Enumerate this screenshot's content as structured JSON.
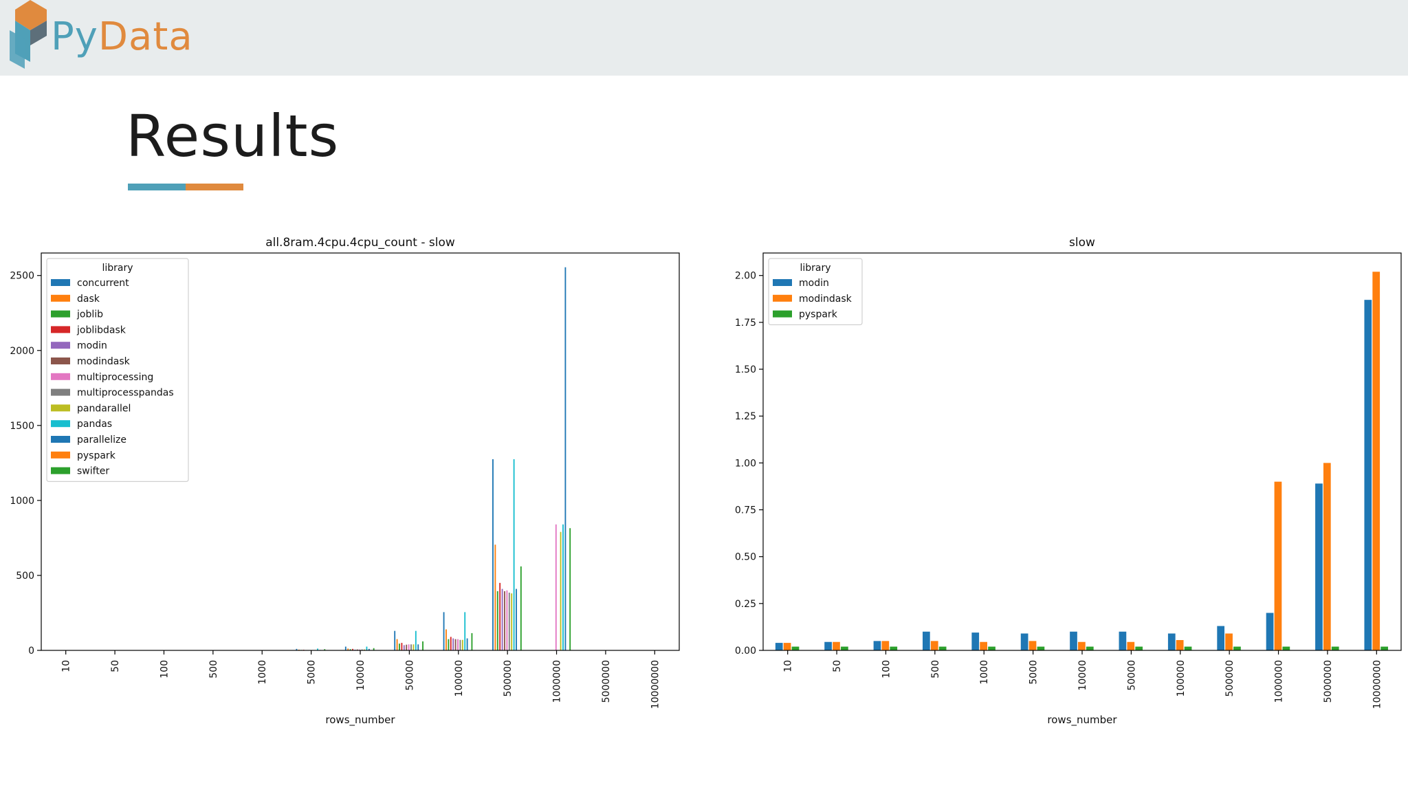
{
  "header": {
    "logo_py": "Py",
    "logo_data": "Data"
  },
  "slide": {
    "title": "Results"
  },
  "colors": {
    "header_bg": "#e8eced",
    "brand_blue": "#4fa0b8",
    "brand_orange": "#e08a3e"
  },
  "chart_data": [
    {
      "type": "bar",
      "title": "all.8ram.4cpu.4cpu_count - slow",
      "xlabel": "rows_number",
      "ylabel": "",
      "ylim": [
        0,
        2650
      ],
      "yticks": [
        "0",
        "500",
        "1000",
        "1500",
        "2000",
        "2500"
      ],
      "categories": [
        "10",
        "50",
        "100",
        "500",
        "1000",
        "5000",
        "10000",
        "50000",
        "100000",
        "500000",
        "1000000",
        "5000000",
        "10000000"
      ],
      "legend_title": "library",
      "legend_position": "upper-left",
      "series": [
        {
          "name": "concurrent",
          "color": "#1f77b4",
          "values": [
            0,
            0,
            0,
            0,
            0,
            10,
            25,
            130,
            255,
            1275,
            null,
            null,
            null
          ]
        },
        {
          "name": "dask",
          "color": "#ff7f0e",
          "values": [
            0,
            0,
            0,
            0,
            0,
            5,
            12,
            75,
            140,
            705,
            null,
            null,
            null
          ]
        },
        {
          "name": "joblib",
          "color": "#2ca02c",
          "values": [
            0,
            0,
            0,
            0,
            0,
            3,
            8,
            45,
            75,
            395,
            null,
            null,
            null
          ]
        },
        {
          "name": "joblibdask",
          "color": "#d62728",
          "values": [
            0,
            0,
            0,
            0,
            0,
            4,
            10,
            50,
            90,
            450,
            null,
            null,
            null
          ]
        },
        {
          "name": "modin",
          "color": "#9467bd",
          "values": [
            0,
            0,
            0,
            0,
            0,
            2,
            5,
            35,
            80,
            410,
            null,
            null,
            null
          ]
        },
        {
          "name": "modindask",
          "color": "#8c564b",
          "values": [
            0,
            0,
            0,
            0,
            0,
            2,
            6,
            38,
            75,
            395,
            null,
            null,
            null
          ]
        },
        {
          "name": "multiprocessing",
          "color": "#e377c2",
          "values": [
            0,
            0,
            0,
            0,
            0,
            2,
            6,
            40,
            75,
            400,
            840,
            null,
            null
          ]
        },
        {
          "name": "multiprocesspandas",
          "color": "#7f7f7f",
          "values": [
            0,
            0,
            0,
            0,
            0,
            2,
            6,
            40,
            70,
            385,
            null,
            null,
            null
          ]
        },
        {
          "name": "pandarallel",
          "color": "#bcbd22",
          "values": [
            0,
            0,
            0,
            0,
            0,
            2,
            6,
            40,
            70,
            380,
            790,
            null,
            null
          ]
        },
        {
          "name": "pandas",
          "color": "#17becf",
          "values": [
            0,
            0,
            0,
            0,
            0,
            12,
            25,
            130,
            255,
            1275,
            840,
            null,
            null
          ]
        },
        {
          "name": "parallelize",
          "color": "#1f77b4",
          "values": [
            0,
            0,
            0,
            0,
            0,
            3,
            10,
            40,
            80,
            410,
            2555,
            null,
            null
          ]
        },
        {
          "name": "pyspark",
          "color": "#ff7f0e",
          "values": [
            null,
            null,
            null,
            null,
            null,
            null,
            null,
            null,
            null,
            null,
            null,
            null,
            null
          ]
        },
        {
          "name": "swifter",
          "color": "#2ca02c",
          "values": [
            0,
            0,
            0,
            0,
            0,
            8,
            15,
            60,
            115,
            560,
            815,
            null,
            null
          ]
        }
      ]
    },
    {
      "type": "bar",
      "title": "slow",
      "xlabel": "rows_number",
      "ylabel": "",
      "ylim": [
        0,
        2.12
      ],
      "yticks": [
        "0.00",
        "0.25",
        "0.50",
        "0.75",
        "1.00",
        "1.25",
        "1.50",
        "1.75",
        "2.00"
      ],
      "categories": [
        "10",
        "50",
        "100",
        "500",
        "1000",
        "5000",
        "10000",
        "50000",
        "100000",
        "500000",
        "1000000",
        "5000000",
        "10000000"
      ],
      "legend_title": "library",
      "legend_position": "upper-left",
      "series": [
        {
          "name": "modin",
          "color": "#1f77b4",
          "values": [
            0.04,
            0.045,
            0.05,
            0.1,
            0.095,
            0.09,
            0.1,
            0.1,
            0.09,
            0.13,
            0.2,
            0.89,
            1.87
          ]
        },
        {
          "name": "modindask",
          "color": "#ff7f0e",
          "values": [
            0.04,
            0.045,
            0.05,
            0.05,
            0.045,
            0.05,
            0.045,
            0.045,
            0.055,
            0.09,
            0.9,
            1.0,
            2.02
          ]
        },
        {
          "name": "pyspark",
          "color": "#2ca02c",
          "values": [
            0.02,
            0.02,
            0.02,
            0.02,
            0.02,
            0.02,
            0.02,
            0.02,
            0.02,
            0.02,
            0.02,
            0.02,
            0.02
          ]
        }
      ]
    }
  ]
}
